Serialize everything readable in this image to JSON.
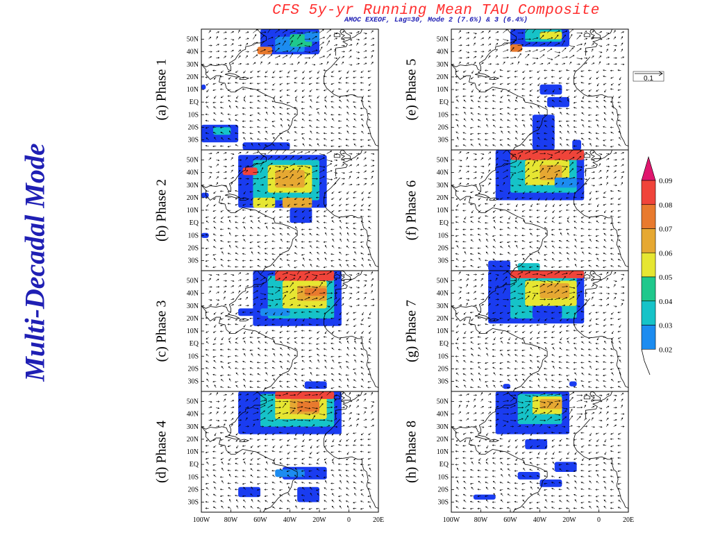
{
  "side_title": "Multi-Decadal Mode",
  "title": "CFS 5y-yr Running Mean TAU Composite",
  "subtitle": "AMOC EXEOF, Lag=30, Mode 2 (7.6%) & 3 (6.4%)",
  "reference_vector_label": "0.1",
  "chart_data": {
    "type": "heatmap",
    "title": "CFS 5y-yr Running Mean TAU Composite",
    "subtitle": "AMOC EXEOF, Lag=30, Mode 2 (7.6%) & 3 (6.4%)",
    "panels": [
      {
        "label": "(a) Phase 1",
        "column": "left",
        "row": 1
      },
      {
        "label": "(b) Phase 2",
        "column": "left",
        "row": 2
      },
      {
        "label": "(c) Phase 3",
        "column": "left",
        "row": 3
      },
      {
        "label": "(d) Phase 4",
        "column": "left",
        "row": 4
      },
      {
        "label": "(e) Phase 5",
        "column": "right",
        "row": 1
      },
      {
        "label": "(f) Phase 6",
        "column": "right",
        "row": 2
      },
      {
        "label": "(g) Phase 7",
        "column": "right",
        "row": 3
      },
      {
        "label": "(h) Phase 8",
        "column": "right",
        "row": 4
      }
    ],
    "lat_ticks": [
      "50N",
      "40N",
      "30N",
      "20N",
      "10N",
      "EQ",
      "10S",
      "20S",
      "30S"
    ],
    "lon_ticks": [
      "100W",
      "80W",
      "60W",
      "40W",
      "20W",
      "0",
      "20E"
    ],
    "colorbar": {
      "levels": [
        "0.02",
        "0.03",
        "0.04",
        "0.05",
        "0.06",
        "0.07",
        "0.08",
        "0.09"
      ],
      "colors": [
        "#1a3cf0",
        "#1c8cf0",
        "#16c3c8",
        "#1fc88c",
        "#e6e632",
        "#e6a832",
        "#e87a2e",
        "#f0443a",
        "#e0166e"
      ]
    },
    "reference_vector": "0.1",
    "colors": {
      "title": "#ff2d2d",
      "subtitle": "#1f1fb4",
      "side_title": "#1f1fb4",
      "coast": "#000000"
    }
  }
}
